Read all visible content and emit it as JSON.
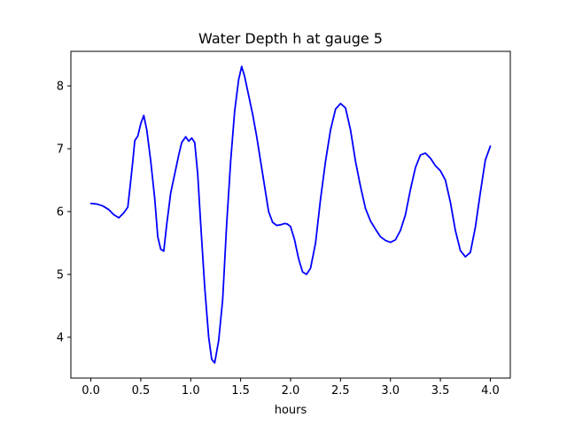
{
  "chart_data": {
    "type": "line",
    "title": "Water Depth h at gauge 5",
    "xlabel": "hours",
    "ylabel": "",
    "xlim": [
      -0.2,
      4.2
    ],
    "ylim": [
      3.35,
      8.55
    ],
    "grid": false,
    "legend": "none",
    "x_ticks": [
      0.0,
      0.5,
      1.0,
      1.5,
      2.0,
      2.5,
      3.0,
      3.5,
      4.0
    ],
    "x_tick_labels": [
      "0.0",
      "0.5",
      "1.0",
      "1.5",
      "2.0",
      "2.5",
      "3.0",
      "3.5",
      "4.0"
    ],
    "y_ticks": [
      4,
      5,
      6,
      7,
      8
    ],
    "y_tick_labels": [
      "4",
      "5",
      "6",
      "7",
      "8"
    ],
    "series": [
      {
        "color": "#0000ff",
        "points": [
          [
            0.0,
            6.13
          ],
          [
            0.06,
            6.12
          ],
          [
            0.12,
            6.09
          ],
          [
            0.18,
            6.03
          ],
          [
            0.23,
            5.95
          ],
          [
            0.28,
            5.9
          ],
          [
            0.33,
            5.98
          ],
          [
            0.37,
            6.07
          ],
          [
            0.4,
            6.5
          ],
          [
            0.42,
            6.8
          ],
          [
            0.44,
            7.13
          ],
          [
            0.47,
            7.2
          ],
          [
            0.5,
            7.4
          ],
          [
            0.53,
            7.53
          ],
          [
            0.56,
            7.3
          ],
          [
            0.6,
            6.8
          ],
          [
            0.64,
            6.2
          ],
          [
            0.67,
            5.6
          ],
          [
            0.7,
            5.4
          ],
          [
            0.73,
            5.37
          ],
          [
            0.76,
            5.8
          ],
          [
            0.8,
            6.3
          ],
          [
            0.84,
            6.6
          ],
          [
            0.88,
            6.9
          ],
          [
            0.91,
            7.1
          ],
          [
            0.95,
            7.19
          ],
          [
            0.98,
            7.12
          ],
          [
            1.01,
            7.17
          ],
          [
            1.04,
            7.1
          ],
          [
            1.07,
            6.6
          ],
          [
            1.1,
            5.8
          ],
          [
            1.14,
            4.8
          ],
          [
            1.18,
            4.0
          ],
          [
            1.21,
            3.65
          ],
          [
            1.24,
            3.59
          ],
          [
            1.28,
            3.95
          ],
          [
            1.32,
            4.6
          ],
          [
            1.36,
            5.8
          ],
          [
            1.4,
            6.8
          ],
          [
            1.44,
            7.6
          ],
          [
            1.48,
            8.1
          ],
          [
            1.51,
            8.31
          ],
          [
            1.54,
            8.15
          ],
          [
            1.58,
            7.85
          ],
          [
            1.62,
            7.55
          ],
          [
            1.66,
            7.2
          ],
          [
            1.7,
            6.8
          ],
          [
            1.74,
            6.4
          ],
          [
            1.78,
            6.0
          ],
          [
            1.82,
            5.83
          ],
          [
            1.86,
            5.78
          ],
          [
            1.9,
            5.79
          ],
          [
            1.94,
            5.81
          ],
          [
            1.97,
            5.8
          ],
          [
            2.0,
            5.76
          ],
          [
            2.04,
            5.55
          ],
          [
            2.08,
            5.25
          ],
          [
            2.12,
            5.04
          ],
          [
            2.16,
            5.0
          ],
          [
            2.2,
            5.1
          ],
          [
            2.25,
            5.5
          ],
          [
            2.3,
            6.2
          ],
          [
            2.35,
            6.8
          ],
          [
            2.4,
            7.3
          ],
          [
            2.45,
            7.63
          ],
          [
            2.5,
            7.72
          ],
          [
            2.55,
            7.65
          ],
          [
            2.6,
            7.3
          ],
          [
            2.65,
            6.8
          ],
          [
            2.7,
            6.4
          ],
          [
            2.75,
            6.05
          ],
          [
            2.8,
            5.85
          ],
          [
            2.85,
            5.72
          ],
          [
            2.9,
            5.6
          ],
          [
            2.95,
            5.54
          ],
          [
            3.0,
            5.51
          ],
          [
            3.05,
            5.55
          ],
          [
            3.1,
            5.7
          ],
          [
            3.15,
            5.95
          ],
          [
            3.2,
            6.35
          ],
          [
            3.25,
            6.7
          ],
          [
            3.3,
            6.9
          ],
          [
            3.35,
            6.93
          ],
          [
            3.4,
            6.85
          ],
          [
            3.45,
            6.73
          ],
          [
            3.5,
            6.65
          ],
          [
            3.55,
            6.5
          ],
          [
            3.6,
            6.15
          ],
          [
            3.65,
            5.7
          ],
          [
            3.7,
            5.38
          ],
          [
            3.75,
            5.28
          ],
          [
            3.8,
            5.35
          ],
          [
            3.85,
            5.75
          ],
          [
            3.9,
            6.3
          ],
          [
            3.95,
            6.82
          ],
          [
            4.0,
            7.04
          ]
        ]
      }
    ]
  }
}
